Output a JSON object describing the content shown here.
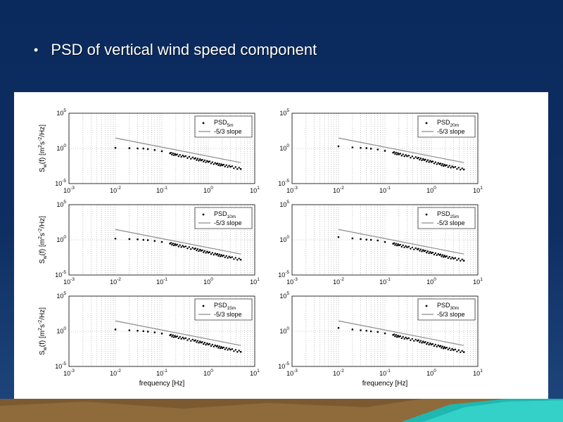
{
  "slide": {
    "bullet": "•",
    "title": "PSD of vertical wind speed component"
  },
  "chart_data": [
    {
      "type": "scatter",
      "xscale": "log",
      "yscale": "log",
      "xlim": [
        0.001,
        10
      ],
      "ylim": [
        1e-05,
        100000
      ],
      "xticks": [
        0.001,
        0.01,
        0.1,
        1,
        10
      ],
      "yticks": [
        1e-05,
        1,
        100000
      ],
      "xlabel": "",
      "ylabel": "S_w(f) [m^2s^-2/Hz]",
      "grid": true,
      "legend_position": "top-right",
      "series": [
        {
          "name": "PSD_5m",
          "style": "markers",
          "x": [
            0.01,
            0.02,
            0.03,
            0.04,
            0.05,
            0.07,
            0.1,
            0.15,
            0.2,
            0.3,
            0.5,
            0.7,
            1,
            1.5,
            2,
            3,
            5
          ],
          "y": [
            1.2,
            1.1,
            1.0,
            0.95,
            0.8,
            0.6,
            0.4,
            0.2,
            0.12,
            0.07,
            0.035,
            0.02,
            0.012,
            0.006,
            0.004,
            0.0025,
            0.0012
          ]
        },
        {
          "name": "-5/3 slope",
          "style": "line",
          "x": [
            0.01,
            5
          ],
          "y": [
            30,
            0.0095
          ]
        }
      ]
    },
    {
      "type": "scatter",
      "xscale": "log",
      "yscale": "log",
      "xlim": [
        0.001,
        10
      ],
      "ylim": [
        1e-05,
        100000
      ],
      "xticks": [
        0.001,
        0.01,
        0.1,
        1,
        10
      ],
      "yticks": [
        1e-05,
        1,
        100000
      ],
      "xlabel": "",
      "ylabel": "",
      "grid": true,
      "legend_position": "top-right",
      "series": [
        {
          "name": "PSD_20m",
          "style": "markers",
          "x": [
            0.01,
            0.02,
            0.03,
            0.04,
            0.05,
            0.07,
            0.1,
            0.15,
            0.2,
            0.3,
            0.5,
            0.7,
            1,
            1.5,
            2,
            3,
            5
          ],
          "y": [
            2.0,
            1.4,
            1.2,
            1.1,
            0.9,
            0.7,
            0.45,
            0.25,
            0.15,
            0.08,
            0.04,
            0.022,
            0.012,
            0.006,
            0.0035,
            0.002,
            0.001
          ]
        },
        {
          "name": "-5/3 slope",
          "style": "line",
          "x": [
            0.01,
            5
          ],
          "y": [
            30,
            0.0095
          ]
        }
      ]
    },
    {
      "type": "scatter",
      "xscale": "log",
      "yscale": "log",
      "xlim": [
        0.001,
        10
      ],
      "ylim": [
        1e-05,
        100000
      ],
      "xticks": [
        0.001,
        0.01,
        0.1,
        1,
        10
      ],
      "yticks": [
        1e-05,
        1,
        100000
      ],
      "xlabel": "",
      "ylabel": "S_w(f) [m^2s^-2/Hz]",
      "grid": true,
      "legend_position": "top-right",
      "series": [
        {
          "name": "PSD_10m",
          "style": "markers",
          "x": [
            0.01,
            0.02,
            0.03,
            0.04,
            0.05,
            0.07,
            0.1,
            0.15,
            0.2,
            0.3,
            0.5,
            0.7,
            1,
            1.5,
            2,
            3,
            5
          ],
          "y": [
            1.5,
            1.3,
            1.2,
            1.0,
            0.9,
            0.7,
            0.5,
            0.3,
            0.18,
            0.1,
            0.05,
            0.028,
            0.015,
            0.008,
            0.005,
            0.003,
            0.0015
          ]
        },
        {
          "name": "-5/3 slope",
          "style": "line",
          "x": [
            0.01,
            5
          ],
          "y": [
            30,
            0.0095
          ]
        }
      ]
    },
    {
      "type": "scatter",
      "xscale": "log",
      "yscale": "log",
      "xlim": [
        0.001,
        10
      ],
      "ylim": [
        1e-05,
        100000
      ],
      "xticks": [
        0.001,
        0.01,
        0.1,
        1,
        10
      ],
      "yticks": [
        1e-05,
        1,
        100000
      ],
      "xlabel": "",
      "ylabel": "",
      "grid": true,
      "legend_position": "top-right",
      "series": [
        {
          "name": "PSD_25m",
          "style": "markers",
          "x": [
            0.01,
            0.02,
            0.03,
            0.04,
            0.05,
            0.07,
            0.1,
            0.15,
            0.2,
            0.3,
            0.5,
            0.7,
            1,
            1.5,
            2,
            3,
            5
          ],
          "y": [
            2.5,
            1.6,
            1.3,
            1.1,
            1.0,
            0.8,
            0.5,
            0.28,
            0.17,
            0.09,
            0.045,
            0.025,
            0.013,
            0.007,
            0.004,
            0.0022,
            0.0011
          ]
        },
        {
          "name": "-5/3 slope",
          "style": "line",
          "x": [
            0.01,
            5
          ],
          "y": [
            30,
            0.0095
          ]
        }
      ]
    },
    {
      "type": "scatter",
      "xscale": "log",
      "yscale": "log",
      "xlim": [
        0.001,
        10
      ],
      "ylim": [
        1e-05,
        100000
      ],
      "xticks": [
        0.001,
        0.01,
        0.1,
        1,
        10
      ],
      "yticks": [
        1e-05,
        1,
        100000
      ],
      "xlabel": "frequency [Hz]",
      "ylabel": "S_w(f) [m^2s^-2/Hz]",
      "grid": true,
      "legend_position": "top-right",
      "series": [
        {
          "name": "PSD_15m",
          "style": "markers",
          "x": [
            0.01,
            0.02,
            0.03,
            0.04,
            0.05,
            0.07,
            0.1,
            0.15,
            0.2,
            0.3,
            0.5,
            0.7,
            1,
            1.5,
            2,
            3,
            5
          ],
          "y": [
            1.8,
            1.4,
            1.2,
            1.05,
            0.9,
            0.7,
            0.48,
            0.27,
            0.16,
            0.09,
            0.045,
            0.025,
            0.013,
            0.007,
            0.0042,
            0.0025,
            0.0012
          ]
        },
        {
          "name": "-5/3 slope",
          "style": "line",
          "x": [
            0.01,
            5
          ],
          "y": [
            30,
            0.0095
          ]
        }
      ]
    },
    {
      "type": "scatter",
      "xscale": "log",
      "yscale": "log",
      "xlim": [
        0.001,
        10
      ],
      "ylim": [
        1e-05,
        100000
      ],
      "xticks": [
        0.001,
        0.01,
        0.1,
        1,
        10
      ],
      "yticks": [
        1e-05,
        1,
        100000
      ],
      "xlabel": "frequency [Hz]",
      "ylabel": "",
      "grid": true,
      "legend_position": "top-right",
      "series": [
        {
          "name": "PSD_30m",
          "style": "markers",
          "x": [
            0.01,
            0.02,
            0.03,
            0.04,
            0.05,
            0.07,
            0.1,
            0.15,
            0.2,
            0.3,
            0.5,
            0.7,
            1,
            1.5,
            2,
            3,
            5
          ],
          "y": [
            3.0,
            1.8,
            1.4,
            1.2,
            1.0,
            0.8,
            0.5,
            0.3,
            0.17,
            0.09,
            0.045,
            0.025,
            0.013,
            0.007,
            0.004,
            0.0022,
            0.0011
          ]
        },
        {
          "name": "-5/3 slope",
          "style": "line",
          "x": [
            0.01,
            5
          ],
          "y": [
            30,
            0.0095
          ]
        }
      ]
    }
  ]
}
